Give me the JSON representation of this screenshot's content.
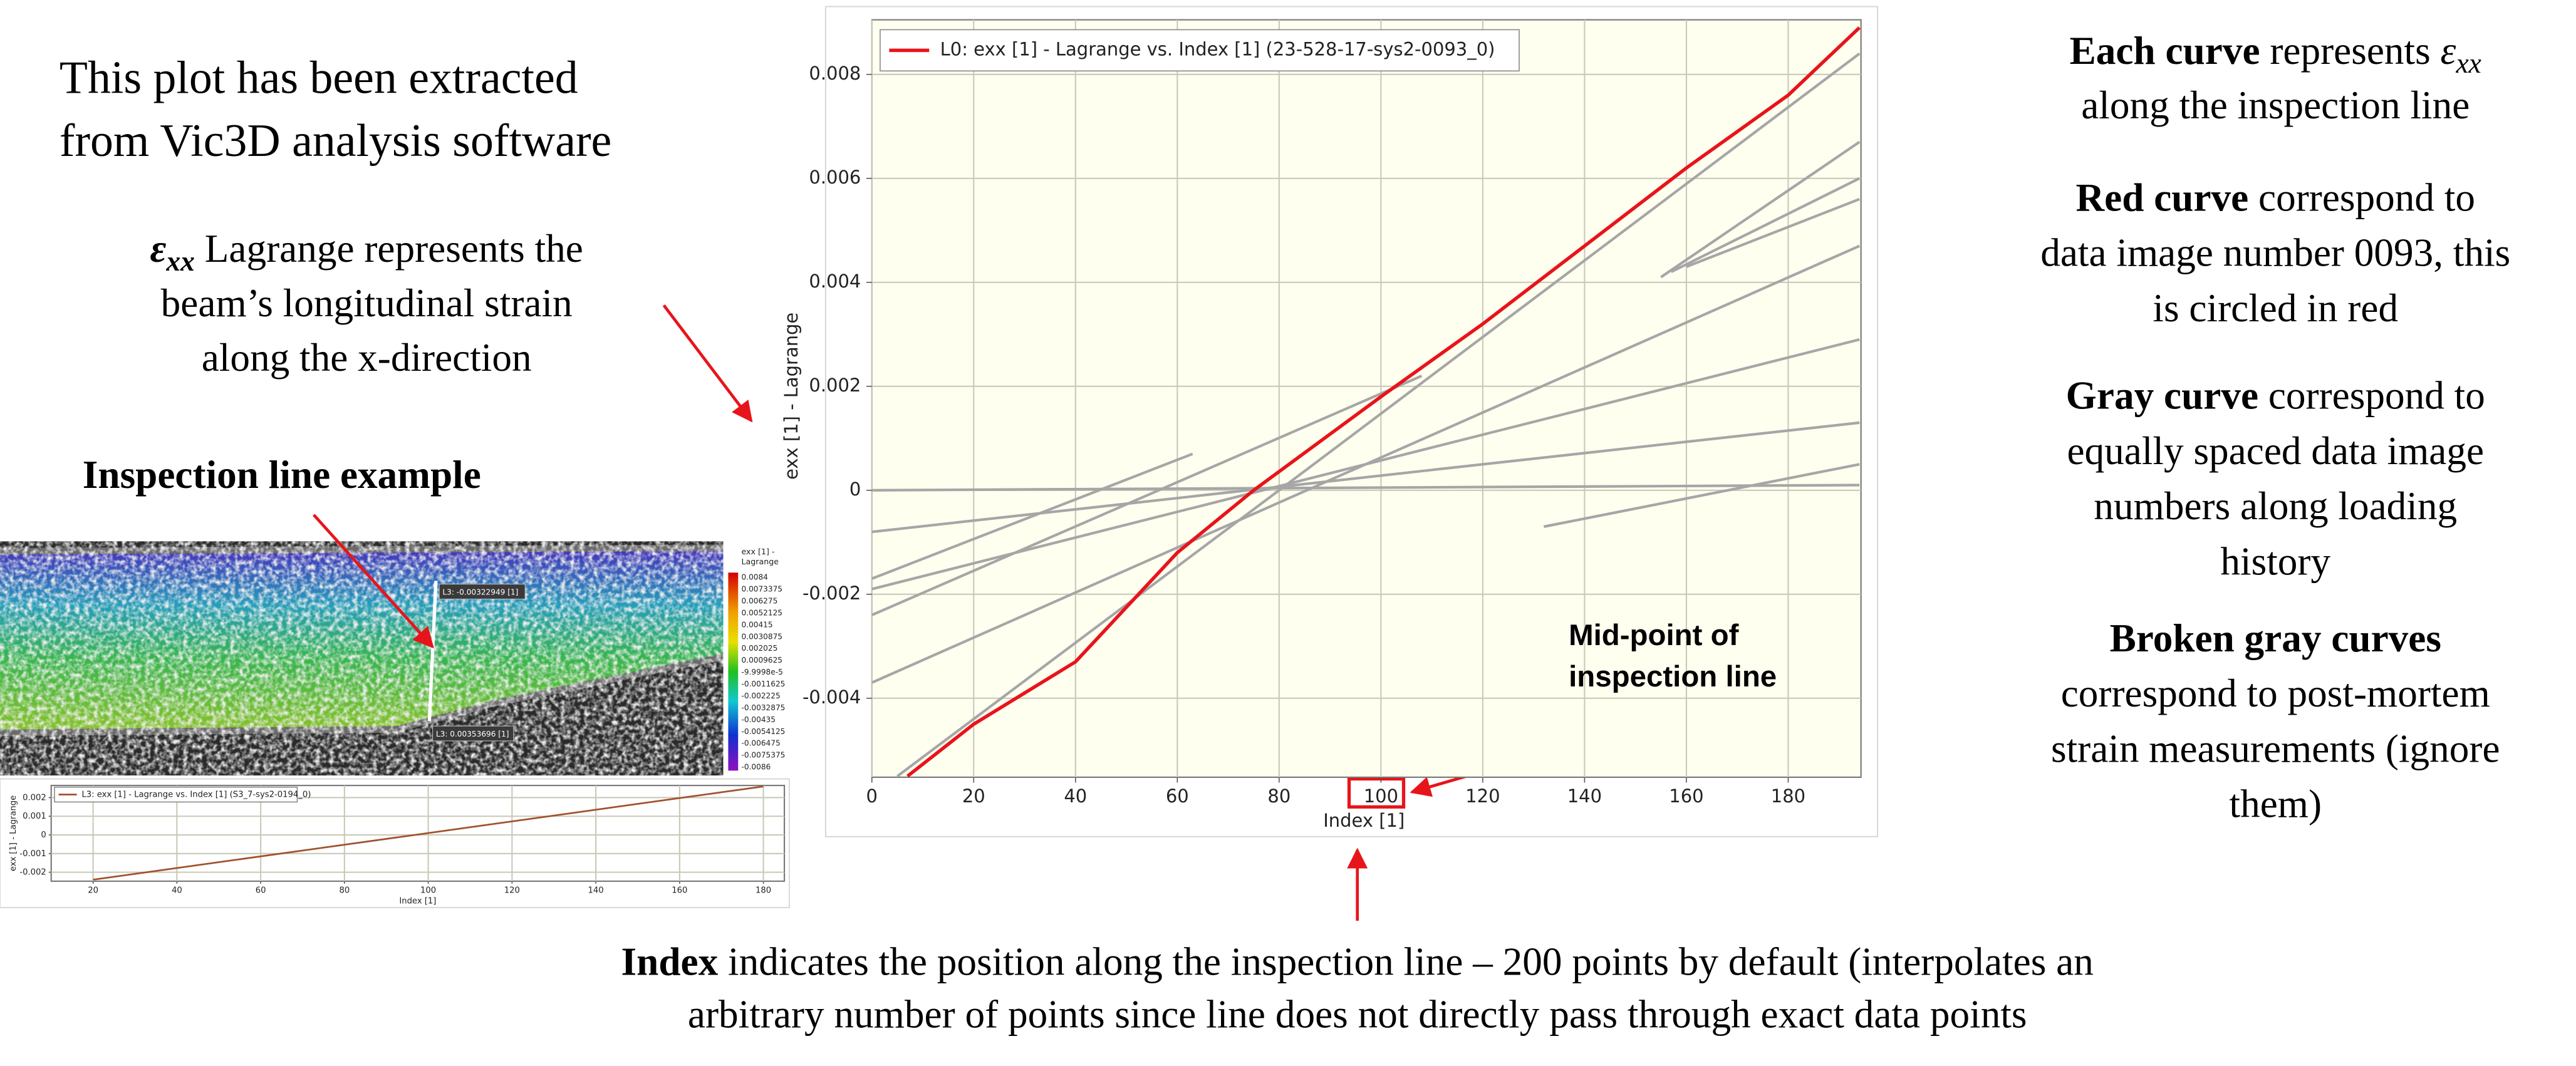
{
  "chart_data": [
    {
      "type": "line",
      "x_label": "Index [1]",
      "y_label": "exx [1] - Lagrange",
      "xlim": [
        0,
        194.3
      ],
      "ylim": [
        -0.00552,
        0.00905
      ],
      "xticks": [
        0,
        20,
        40,
        60,
        80,
        100,
        120,
        140,
        160,
        180
      ],
      "yticks": [
        -0.004,
        -0.002,
        0,
        0.002,
        0.004,
        0.006,
        0.008
      ],
      "grid": true,
      "plot_background": "#fffff0",
      "legend": "top-left",
      "series": [
        {
          "name": "L0: exx [1] - Lagrange vs. Index [1] (23-528-17-sys2-0093_0)",
          "color": "#e8141b",
          "x": [
            7,
            20,
            40,
            60,
            75,
            100,
            120,
            140,
            160,
            180,
            194
          ],
          "values": [
            -0.0055,
            -0.0045,
            -0.0033,
            -0.0012,
            0,
            0.0018,
            0.0032,
            0.0047,
            0.0062,
            0.0076,
            0.0089
          ]
        },
        {
          "color": "#a6a6a6",
          "x": [
            0,
            194
          ],
          "values": [
            0,
            0.0001
          ]
        },
        {
          "color": "#a6a6a6",
          "x": [
            0,
            194
          ],
          "values": [
            -0.0008,
            0.0013
          ]
        },
        {
          "color": "#a6a6a6",
          "x": [
            0,
            63
          ],
          "values": [
            -0.0017,
            0.0007
          ]
        },
        {
          "color": "#a6a6a6",
          "x": [
            0,
            108
          ],
          "values": [
            -0.0024,
            0.0022
          ]
        },
        {
          "color": "#a6a6a6",
          "x": [
            0,
            194
          ],
          "values": [
            -0.0019,
            0.0029
          ]
        },
        {
          "color": "#a6a6a6",
          "x": [
            0,
            194
          ],
          "values": [
            -0.0037,
            0.0047
          ]
        },
        {
          "color": "#a6a6a6",
          "x": [
            5,
            80,
            194
          ],
          "values": [
            -0.0055,
            0,
            0.0084
          ]
        },
        {
          "color": "#a6a6a6",
          "x": [
            155,
            194
          ],
          "values": [
            0.0041,
            0.0067
          ]
        },
        {
          "color": "#a6a6a6",
          "x": [
            157,
            194
          ],
          "values": [
            0.0042,
            0.006
          ]
        },
        {
          "color": "#a6a6a6",
          "x": [
            160,
            194
          ],
          "values": [
            0.0043,
            0.0056
          ]
        },
        {
          "color": "#a6a6a6",
          "x": [
            132,
            194
          ],
          "values": [
            -0.0007,
            0.0005
          ]
        }
      ]
    },
    {
      "type": "line",
      "x_label": "Index [1]",
      "y_label": "exx [1] - Lagrange",
      "xlim": [
        10,
        185
      ],
      "ylim": [
        -0.00248,
        0.00265
      ],
      "xticks": [
        20,
        40,
        60,
        80,
        100,
        120,
        140,
        160,
        180
      ],
      "yticks": [
        -0.002,
        -0.001,
        0,
        0.001,
        0.002
      ],
      "grid": true,
      "plot_background": "#ffffff",
      "legend": "top-left",
      "series": [
        {
          "name": "L3: exx [1] - Lagrange vs. Index [1] (S3_7-sys2-0194_0)",
          "color": "#a0522d",
          "x": [
            20,
            180
          ],
          "values": [
            -0.0024,
            0.0026
          ]
        }
      ]
    }
  ],
  "inspection_image": {
    "colorbar_title": [
      "exx [1] -",
      "Lagrange"
    ],
    "colorbar_labels": [
      "0.0084",
      "0.0073375",
      "0.006275",
      "0.0052125",
      "0.00415",
      "0.0030875",
      "0.002025",
      "0.0009625",
      "-9.9998e-5",
      "-0.0011625",
      "-0.002225",
      "-0.0032875",
      "-0.00435",
      "-0.0054125",
      "-0.006475",
      "-0.0075375",
      "-0.0086"
    ],
    "probe_labels": [
      "L3: -0.00322949 [1]",
      "L3: 0.00353696 [1]"
    ]
  },
  "notes": [
    {
      "lines": [
        [
          {
            "text": "This plot has been extracted"
          }
        ],
        [
          {
            "text": "from Vic3D analysis software"
          }
        ]
      ]
    },
    {
      "lines": [
        [
          {
            "bold_italic": "ε"
          },
          {
            "bold_sub": "xx"
          },
          {
            "text": " Lagrange represents the"
          }
        ],
        [
          {
            "text": "beam’s longitudinal strain"
          }
        ],
        [
          {
            "text": "along the x-direction"
          }
        ]
      ]
    },
    {
      "lines": [
        [
          {
            "bold": "Inspection line example"
          }
        ]
      ]
    },
    {
      "lines": [
        [
          {
            "bold": "Each curve"
          },
          {
            "text": " represents "
          },
          {
            "italic": "ε"
          },
          {
            "sub": "xx"
          }
        ],
        [
          {
            "text": "along the inspection line"
          }
        ]
      ]
    },
    {
      "lines": [
        [
          {
            "bold": "Red curve"
          },
          {
            "text": " correspond to"
          }
        ],
        [
          {
            "text": "data image number 0093, this"
          }
        ],
        [
          {
            "text": "is circled in red"
          }
        ]
      ]
    },
    {
      "lines": [
        [
          {
            "bold": "Gray curve"
          },
          {
            "text": " correspond to"
          }
        ],
        [
          {
            "text": "equally spaced data image"
          }
        ],
        [
          {
            "text": "numbers along loading"
          }
        ],
        [
          {
            "text": "history"
          }
        ]
      ]
    },
    {
      "lines": [
        [
          {
            "bold": "Broken gray curves"
          }
        ],
        [
          {
            "text": "correspond to post-mortem"
          }
        ],
        [
          {
            "text": "strain measurements (ignore"
          }
        ],
        [
          {
            "text": "them)"
          }
        ]
      ]
    },
    {
      "lines": [
        [
          {
            "bold": "Mid-point of"
          }
        ],
        [
          {
            "bold": "inspection line"
          }
        ]
      ]
    },
    {
      "lines": [
        [
          {
            "bold": "Index"
          },
          {
            "text": " indicates the position along the inspection line – 200 points by default (interpolates an"
          }
        ],
        [
          {
            "text": "arbitrary number of points since line does not directly pass through exact data points"
          }
        ]
      ]
    }
  ]
}
